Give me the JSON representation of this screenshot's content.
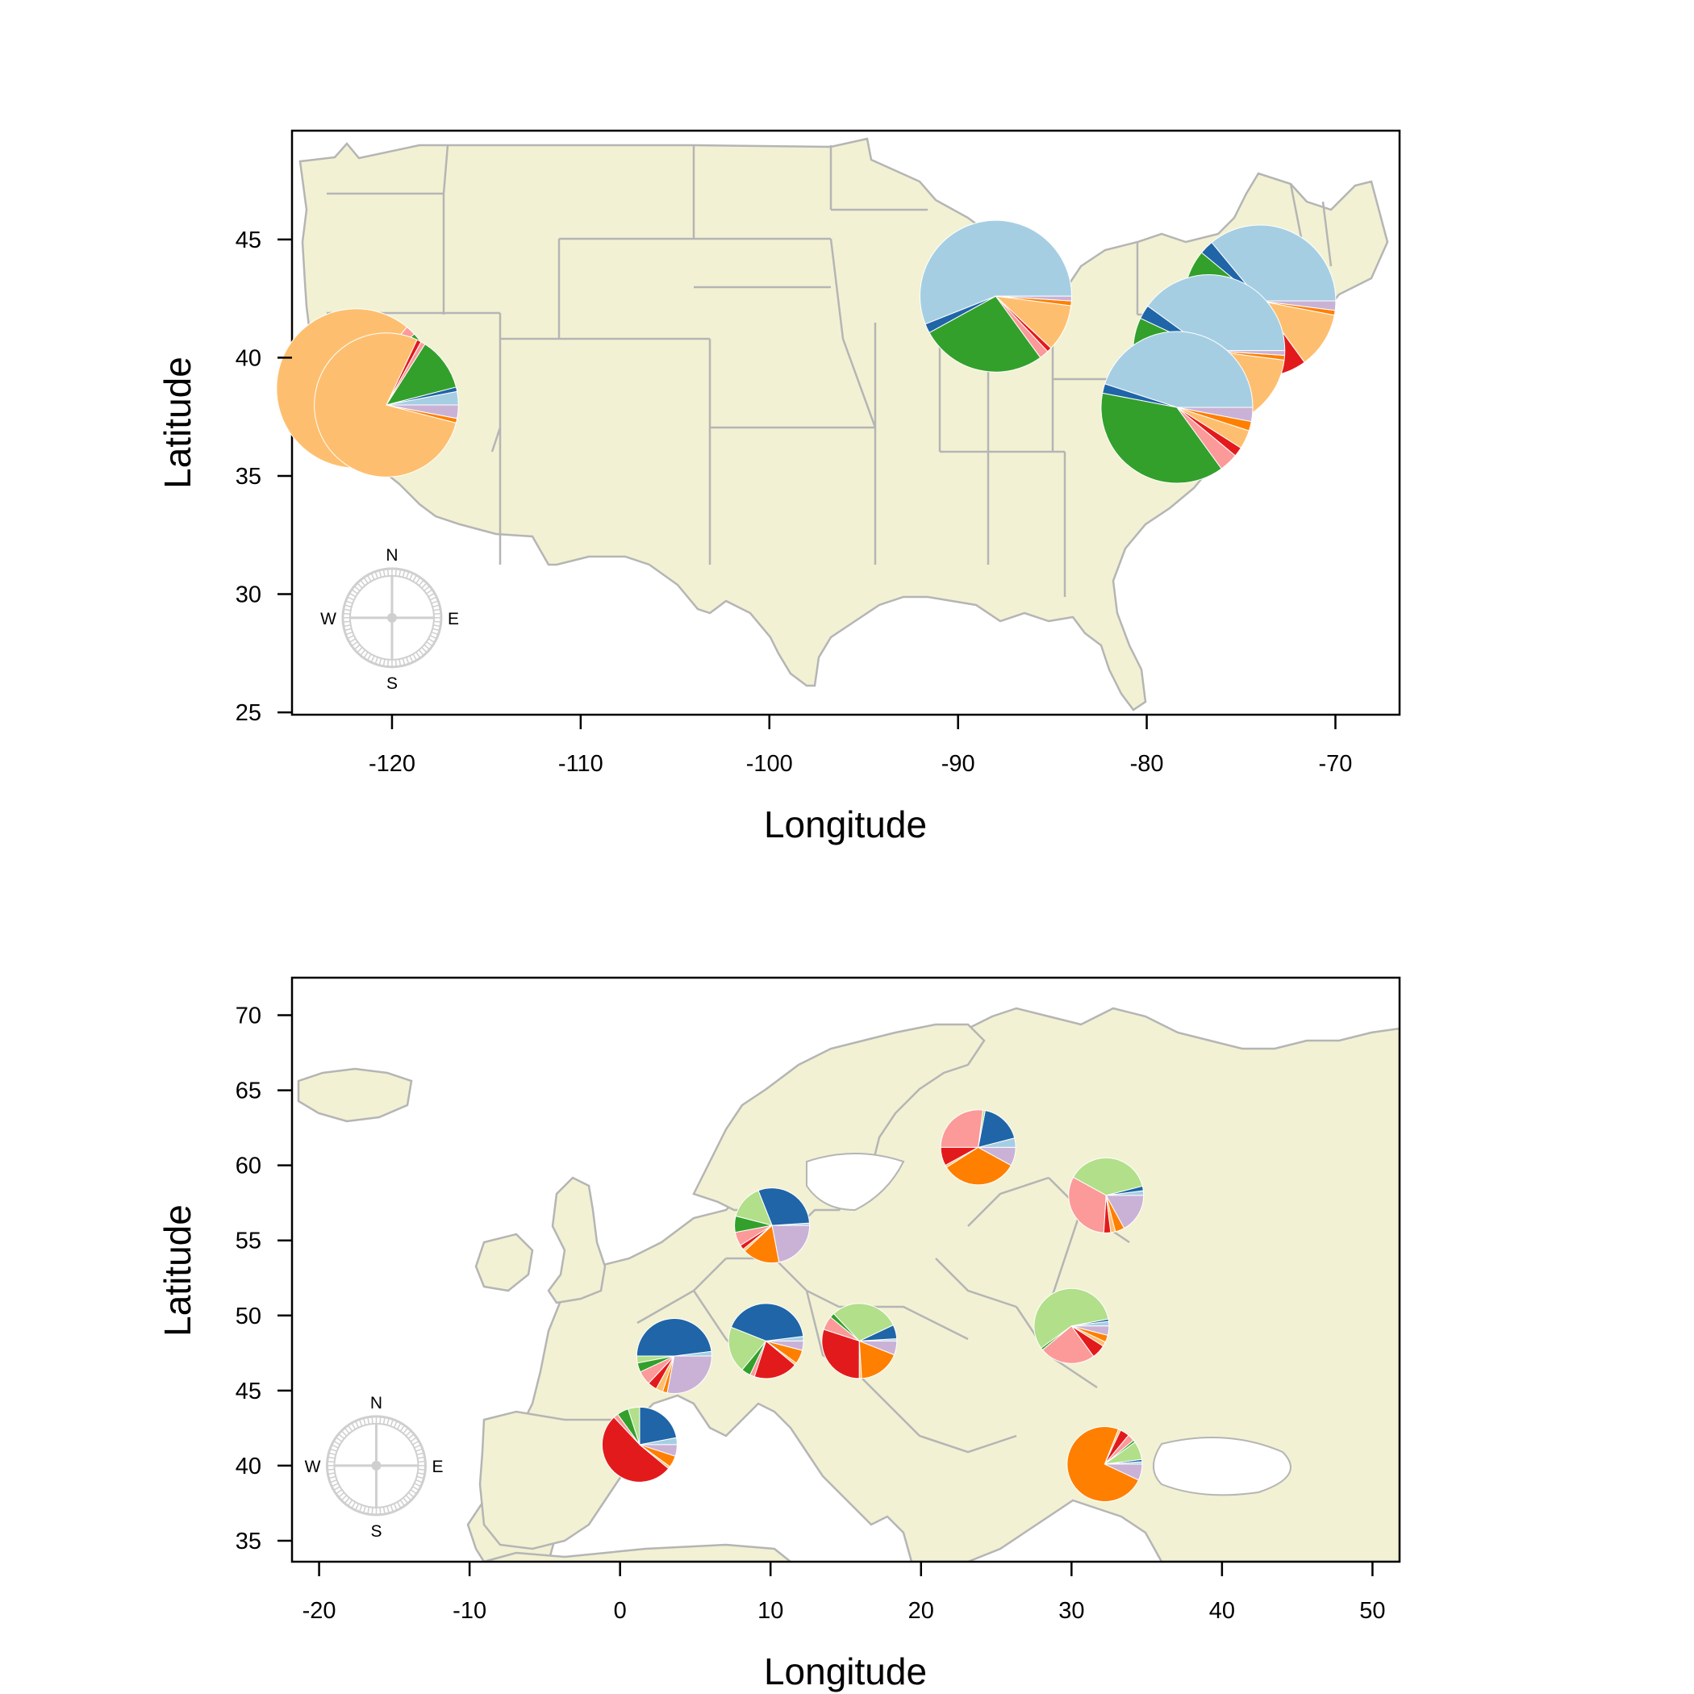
{
  "colors": {
    "land": "#f2f1d3",
    "border": "#b5b5b5",
    "compass": "#cfcfcf",
    "palette": [
      "#a6cee3",
      "#1f65a8",
      "#b2df8a",
      "#33a02c",
      "#fb9a99",
      "#e31a1c",
      "#fdbf6f",
      "#ff7f00",
      "#cab2d6",
      "#6a3d9a"
    ]
  },
  "maps": [
    {
      "id": "usa",
      "xlabel": "Longitude",
      "ylabel": "Latitude",
      "xlim": [
        -125.3,
        -66.6
      ],
      "ylim": [
        24.9,
        49.6
      ],
      "xticks": [
        "-120",
        "-110",
        "-100",
        "-90",
        "-80",
        "-70"
      ],
      "xtick_values": [
        -120,
        -110,
        -100,
        -90,
        -80,
        -70
      ],
      "yticks": [
        "25",
        "30",
        "35",
        "40",
        "45"
      ],
      "ytick_values": [
        25,
        30,
        35,
        40,
        45
      ],
      "compass": {
        "n": "N",
        "s": "S",
        "e": "E",
        "w": "W",
        "lon": -120,
        "lat": 29.0
      },
      "pies": [
        {
          "lon": -121.9,
          "lat": 38.7,
          "r": 2.1,
          "values": [
            0.02,
            0.02,
            0,
            0.08,
            0.02,
            0,
            0.82,
            0.01,
            0.02,
            0.01
          ],
          "colors": [
            "#a6cee3",
            "#1f65a8",
            "#b2df8a",
            "#33a02c",
            "#fb9a99",
            "#e31a1c",
            "#fdbf6f",
            "#ff7f00",
            "#cab2d6",
            "#6a3d9a"
          ]
        },
        {
          "lon": -120.3,
          "lat": 38.0,
          "r": 1.9,
          "values": [
            0.03,
            0.01,
            0,
            0.12,
            0.01,
            0.01,
            0.78,
            0.01,
            0.03,
            0
          ],
          "colors": [
            "#a6cee3",
            "#1f65a8",
            "#b2df8a",
            "#33a02c",
            "#fb9a99",
            "#e31a1c",
            "#fdbf6f",
            "#ff7f00",
            "#cab2d6",
            "#6a3d9a"
          ]
        },
        {
          "lon": -88.0,
          "lat": 42.6,
          "r": 2.0,
          "values": [
            0.56,
            0.02,
            0,
            0.27,
            0.02,
            0.01,
            0.1,
            0.01,
            0.01,
            0
          ],
          "colors": [
            "#a6cee3",
            "#1f65a8",
            "#b2df8a",
            "#33a02c",
            "#fb9a99",
            "#e31a1c",
            "#fdbf6f",
            "#ff7f00",
            "#cab2d6",
            "#6a3d9a"
          ]
        },
        {
          "lon": -74.0,
          "lat": 42.4,
          "r": 2.0,
          "values": [
            0.36,
            0.03,
            0,
            0.33,
            0.05,
            0.08,
            0.12,
            0.01,
            0.02,
            0
          ],
          "colors": [
            "#a6cee3",
            "#1f65a8",
            "#b2df8a",
            "#33a02c",
            "#fb9a99",
            "#e31a1c",
            "#fdbf6f",
            "#ff7f00",
            "#cab2d6",
            "#6a3d9a"
          ]
        },
        {
          "lon": -76.7,
          "lat": 40.3,
          "r": 2.0,
          "values": [
            0.4,
            0.03,
            0,
            0.32,
            0.03,
            0.05,
            0.15,
            0.01,
            0.01,
            0
          ],
          "colors": [
            "#a6cee3",
            "#1f65a8",
            "#b2df8a",
            "#33a02c",
            "#fb9a99",
            "#e31a1c",
            "#fdbf6f",
            "#ff7f00",
            "#cab2d6",
            "#6a3d9a"
          ]
        },
        {
          "lon": -78.4,
          "lat": 37.9,
          "r": 2.0,
          "values": [
            0.45,
            0.02,
            0,
            0.38,
            0.04,
            0.02,
            0.04,
            0.02,
            0.03,
            0
          ],
          "colors": [
            "#a6cee3",
            "#1f65a8",
            "#b2df8a",
            "#33a02c",
            "#fb9a99",
            "#e31a1c",
            "#fdbf6f",
            "#ff7f00",
            "#cab2d6",
            "#6a3d9a"
          ]
        }
      ]
    },
    {
      "id": "europe",
      "xlabel": "Longitude",
      "ylabel": "Latitude",
      "xlim": [
        -21.8,
        51.8
      ],
      "ylim": [
        33.6,
        72.5
      ],
      "xticks": [
        "-20",
        "-10",
        "0",
        "10",
        "20",
        "30",
        "40",
        "50"
      ],
      "xtick_values": [
        -20,
        -10,
        0,
        10,
        20,
        30,
        40,
        50
      ],
      "yticks": [
        "35",
        "40",
        "45",
        "50",
        "55",
        "60",
        "65",
        "70"
      ],
      "ytick_values": [
        35,
        40,
        45,
        50,
        55,
        60,
        65,
        70
      ],
      "compass": {
        "n": "N",
        "s": "S",
        "e": "E",
        "w": "W",
        "lon": -16.2,
        "lat": 40.0
      },
      "pies": [
        {
          "lon": 3.6,
          "lat": 47.3,
          "r": 2.5,
          "values": [
            0.02,
            0.48,
            0.03,
            0.04,
            0.06,
            0.04,
            0.03,
            0.02,
            0.28,
            0
          ],
          "colors": [
            "#a6cee3",
            "#1f65a8",
            "#b2df8a",
            "#33a02c",
            "#fb9a99",
            "#e31a1c",
            "#fdbf6f",
            "#ff7f00",
            "#cab2d6",
            "#6a3d9a"
          ]
        },
        {
          "lon": 1.3,
          "lat": 41.4,
          "r": 2.5,
          "values": [
            0.03,
            0.22,
            0.05,
            0.05,
            0.02,
            0.52,
            0.01,
            0.05,
            0.05,
            0
          ],
          "colors": [
            "#a6cee3",
            "#1f65a8",
            "#b2df8a",
            "#33a02c",
            "#fb9a99",
            "#e31a1c",
            "#fdbf6f",
            "#ff7f00",
            "#cab2d6",
            "#6a3d9a"
          ]
        },
        {
          "lon": 10.1,
          "lat": 56.0,
          "r": 2.5,
          "values": [
            0.01,
            0.3,
            0.15,
            0.07,
            0.06,
            0.02,
            0.01,
            0.16,
            0.22,
            0
          ],
          "colors": [
            "#a6cee3",
            "#1f65a8",
            "#b2df8a",
            "#33a02c",
            "#fb9a99",
            "#e31a1c",
            "#fdbf6f",
            "#ff7f00",
            "#cab2d6",
            "#6a3d9a"
          ]
        },
        {
          "lon": 9.7,
          "lat": 48.3,
          "r": 2.5,
          "values": [
            0.02,
            0.42,
            0.2,
            0.04,
            0.02,
            0.19,
            0.01,
            0.06,
            0.04,
            0
          ],
          "colors": [
            "#a6cee3",
            "#1f65a8",
            "#b2df8a",
            "#33a02c",
            "#fb9a99",
            "#e31a1c",
            "#fdbf6f",
            "#ff7f00",
            "#cab2d6",
            "#6a3d9a"
          ]
        },
        {
          "lon": 15.9,
          "lat": 48.3,
          "r": 2.5,
          "values": [
            0.01,
            0.06,
            0.3,
            0.02,
            0.06,
            0.3,
            0.01,
            0.18,
            0.06,
            0
          ],
          "colors": [
            "#a6cee3",
            "#1f65a8",
            "#b2df8a",
            "#33a02c",
            "#fb9a99",
            "#e31a1c",
            "#fdbf6f",
            "#ff7f00",
            "#cab2d6",
            "#6a3d9a"
          ]
        },
        {
          "lon": 23.8,
          "lat": 61.2,
          "r": 2.5,
          "values": [
            0.04,
            0.18,
            0.01,
            0.0,
            0.27,
            0.08,
            0.01,
            0.33,
            0.08,
            0
          ],
          "colors": [
            "#a6cee3",
            "#1f65a8",
            "#b2df8a",
            "#33a02c",
            "#fb9a99",
            "#e31a1c",
            "#fdbf6f",
            "#ff7f00",
            "#cab2d6",
            "#6a3d9a"
          ]
        },
        {
          "lon": 32.3,
          "lat": 58.0,
          "r": 2.5,
          "values": [
            0.02,
            0.02,
            0.38,
            0.0,
            0.32,
            0.03,
            0.02,
            0.04,
            0.17,
            0
          ],
          "colors": [
            "#a6cee3",
            "#1f65a8",
            "#b2df8a",
            "#33a02c",
            "#fb9a99",
            "#e31a1c",
            "#fdbf6f",
            "#ff7f00",
            "#cab2d6",
            "#6a3d9a"
          ]
        },
        {
          "lon": 30.0,
          "lat": 49.3,
          "r": 2.5,
          "values": [
            0.02,
            0.01,
            0.57,
            0.01,
            0.24,
            0.06,
            0.02,
            0.03,
            0.04,
            0
          ],
          "colors": [
            "#a6cee3",
            "#1f65a8",
            "#b2df8a",
            "#33a02c",
            "#fb9a99",
            "#e31a1c",
            "#fdbf6f",
            "#ff7f00",
            "#cab2d6",
            "#6a3d9a"
          ]
        },
        {
          "lon": 32.2,
          "lat": 40.1,
          "r": 2.5,
          "values": [
            0.01,
            0.01,
            0.08,
            0.01,
            0.03,
            0.04,
            0.01,
            0.74,
            0.07,
            0
          ],
          "colors": [
            "#a6cee3",
            "#1f65a8",
            "#b2df8a",
            "#33a02c",
            "#fb9a99",
            "#e31a1c",
            "#fdbf6f",
            "#ff7f00",
            "#cab2d6",
            "#6a3d9a"
          ]
        }
      ]
    }
  ]
}
